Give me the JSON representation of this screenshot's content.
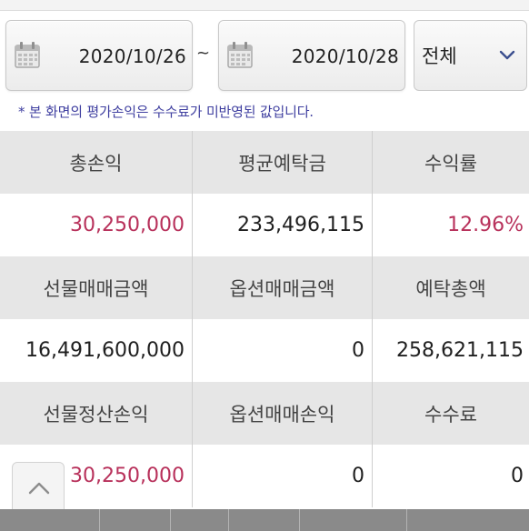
{
  "filter": {
    "date_from": "2020/10/26",
    "separator": "~",
    "date_to": "2020/10/28",
    "category": "전체",
    "icons": [
      "calendar-icon",
      "calendar-icon",
      "chevron-down-icon"
    ]
  },
  "notice": "* 본 화면의 평가손익은 수수료가 미반영된 값입니다.",
  "summary": {
    "row1": {
      "labels": [
        "총손익",
        "평균예탁금",
        "수익률"
      ],
      "values": [
        "30,250,000",
        "233,496,115",
        "12.96%"
      ]
    },
    "row2": {
      "labels": [
        "선물매매금액",
        "옵션매매금액",
        "예탁총액"
      ],
      "values": [
        "16,491,600,000",
        "0",
        "258,621,115"
      ]
    },
    "row3": {
      "labels": [
        "선물정산손익",
        "옵션매매손익",
        "수수료"
      ],
      "values": [
        "30,250,000",
        "0",
        "0"
      ]
    }
  },
  "colors": {
    "positive": "#b8315b",
    "label_bg": "#e6e6e6",
    "notice": "#3f3fa0"
  },
  "scroll_top_icon": "chevron-up-icon"
}
